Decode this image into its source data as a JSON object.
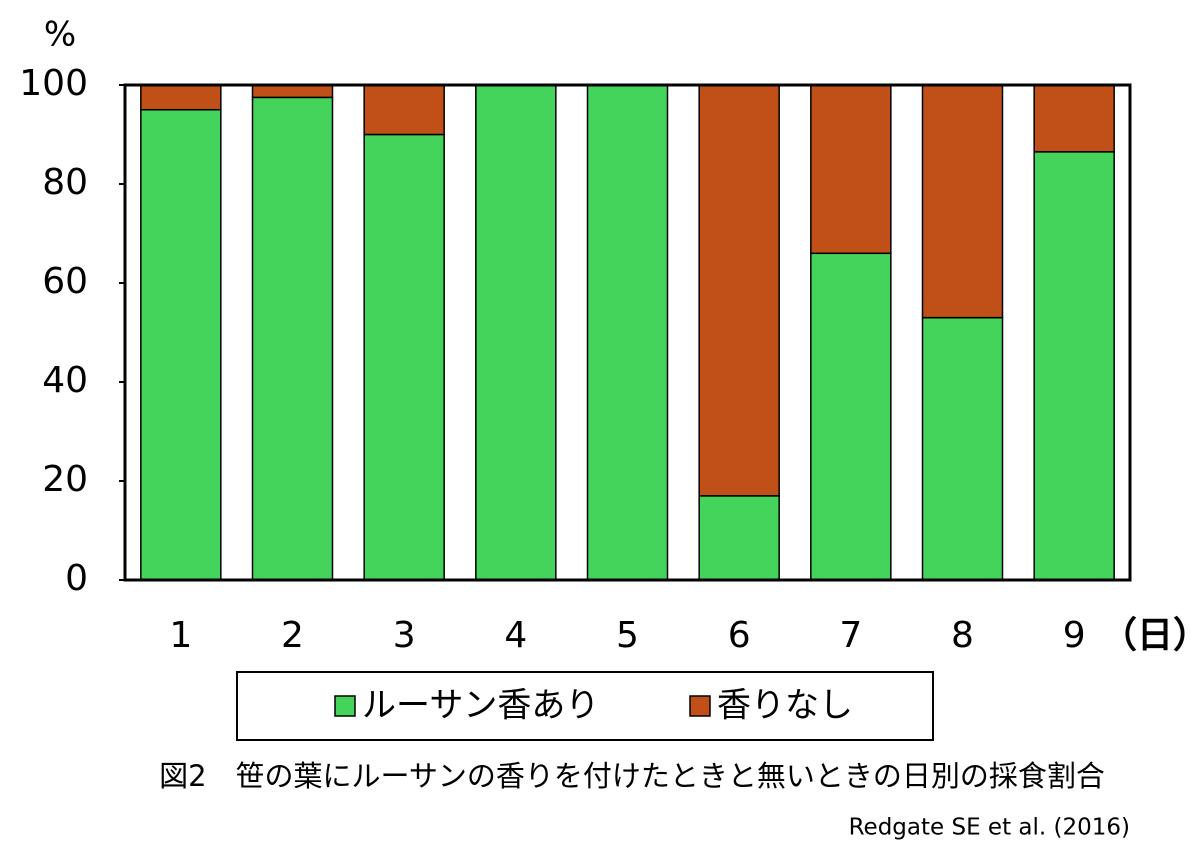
{
  "chart_data": {
    "type": "stacked_bar",
    "y_label": "%",
    "x_label": "（日）",
    "caption": "図2　笹の葉にルーサンの香りを付けたときと無いときの日別の採食割合",
    "source": "Redgate SE et al. (2016)",
    "categories": [
      "1",
      "2",
      "3",
      "4",
      "5",
      "6",
      "7",
      "8",
      "9"
    ],
    "series": [
      {
        "name": "ルーサン香あり",
        "color": "#45d45b",
        "values": [
          95,
          97.5,
          90,
          100,
          100,
          17,
          66,
          53,
          86.5
        ]
      },
      {
        "name": "香りなし",
        "color": "#c05018",
        "values": [
          5,
          2.5,
          10,
          0,
          0,
          83,
          34,
          47,
          13.5
        ]
      }
    ],
    "ylim": [
      0,
      100
    ],
    "yticks": [
      0,
      20,
      40,
      60,
      80,
      100
    ],
    "legend": "bottom"
  }
}
